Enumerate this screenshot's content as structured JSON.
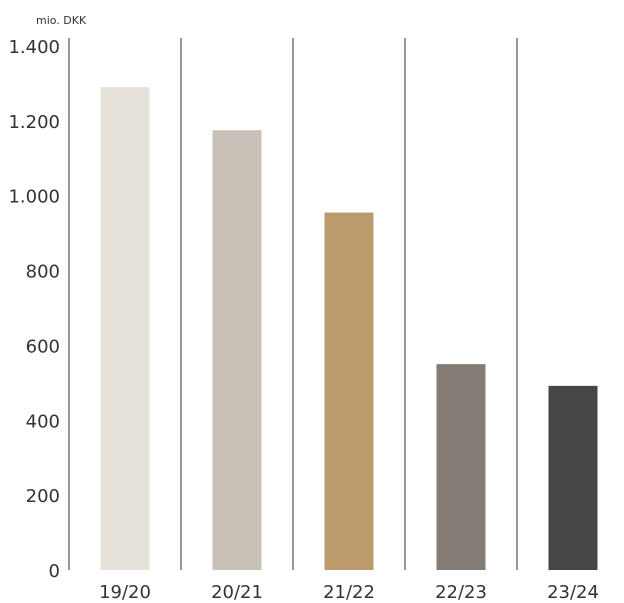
{
  "chart_data": {
    "type": "bar",
    "unit_label": "mio. DKK",
    "categories": [
      "19/20",
      "20/21",
      "21/22",
      "22/23",
      "23/24"
    ],
    "values": [
      1290,
      1175,
      955,
      550,
      492
    ],
    "colors": [
      "#e6e1d8",
      "#c9c0b8",
      "#bb9a6c",
      "#837b74",
      "#464646"
    ],
    "ylim": [
      0,
      1400
    ],
    "yticks": [
      {
        "value": 0,
        "label": "0"
      },
      {
        "value": 200,
        "label": "200"
      },
      {
        "value": 400,
        "label": "400"
      },
      {
        "value": 600,
        "label": "600"
      },
      {
        "value": 800,
        "label": "800"
      },
      {
        "value": 1000,
        "label": "1.000"
      },
      {
        "value": 1200,
        "label": "1.200"
      },
      {
        "value": 1400,
        "label": "1.400"
      }
    ],
    "grid": false,
    "category_dividers": true
  }
}
